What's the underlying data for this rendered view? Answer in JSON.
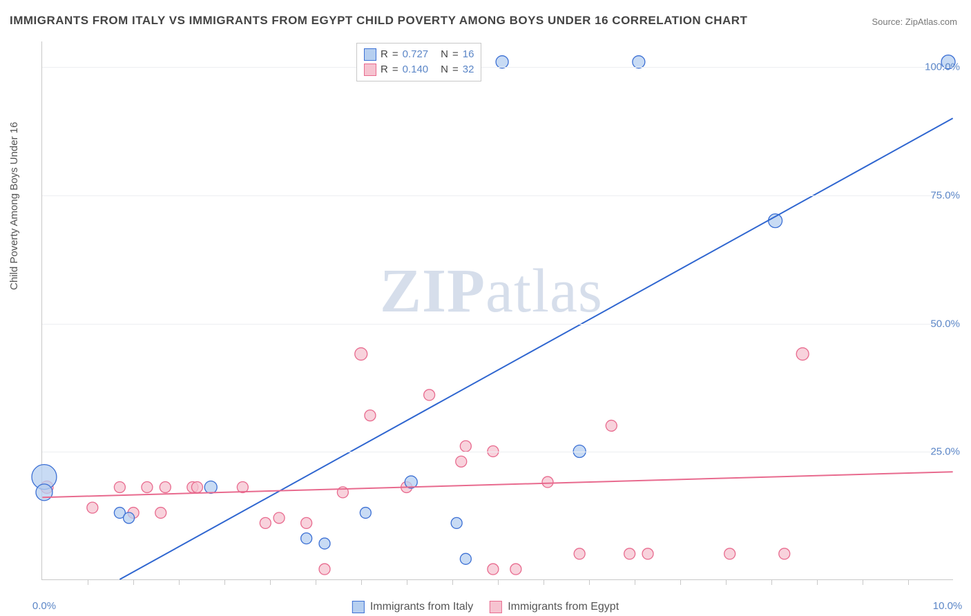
{
  "title": "IMMIGRANTS FROM ITALY VS IMMIGRANTS FROM EGYPT CHILD POVERTY AMONG BOYS UNDER 16 CORRELATION CHART",
  "source_prefix": "Source: ",
  "source": "ZipAtlas.com",
  "y_axis_label": "Child Poverty Among Boys Under 16",
  "watermark_a": "ZIP",
  "watermark_b": "atlas",
  "chart": {
    "type": "scatter",
    "xlim": [
      0,
      10
    ],
    "ylim": [
      0,
      105
    ],
    "y_ticks": [
      {
        "v": 25,
        "label": "25.0%"
      },
      {
        "v": 50,
        "label": "50.0%"
      },
      {
        "v": 75,
        "label": "75.0%"
      },
      {
        "v": 100,
        "label": "100.0%"
      }
    ],
    "x_ticks_major": [
      {
        "v": 0,
        "label": "0.0%"
      },
      {
        "v": 10,
        "label": "10.0%"
      }
    ],
    "x_minor_ticks": [
      0.5,
      1,
      1.5,
      2,
      2.5,
      3,
      3.5,
      4,
      4.5,
      5,
      5.5,
      6,
      6.5,
      7,
      7.5,
      8,
      8.5,
      9,
      9.5
    ],
    "background": "#ffffff",
    "grid_color": "#eceef1",
    "axis_color": "#c8c8c8"
  },
  "series": [
    {
      "name": "Immigrants from Italy",
      "fill": "#b6cff0",
      "stroke": "#3b6fd4",
      "line_color": "#2f66d0",
      "line_width": 2,
      "r_value": "0.727",
      "n_value": "16",
      "trend": {
        "x1": 0.85,
        "y1": 0,
        "x2": 10,
        "y2": 90
      },
      "points": [
        {
          "x": 0.02,
          "y": 20,
          "r": 18
        },
        {
          "x": 0.02,
          "y": 17,
          "r": 12
        },
        {
          "x": 0.85,
          "y": 13,
          "r": 8
        },
        {
          "x": 0.95,
          "y": 12,
          "r": 8
        },
        {
          "x": 1.85,
          "y": 18,
          "r": 9
        },
        {
          "x": 2.9,
          "y": 8,
          "r": 8
        },
        {
          "x": 3.1,
          "y": 7,
          "r": 8
        },
        {
          "x": 3.55,
          "y": 13,
          "r": 8
        },
        {
          "x": 4.05,
          "y": 19,
          "r": 9
        },
        {
          "x": 4.55,
          "y": 11,
          "r": 8
        },
        {
          "x": 4.65,
          "y": 4,
          "r": 8
        },
        {
          "x": 5.05,
          "y": 101,
          "r": 9
        },
        {
          "x": 5.9,
          "y": 25,
          "r": 9
        },
        {
          "x": 6.55,
          "y": 101,
          "r": 9
        },
        {
          "x": 8.05,
          "y": 70,
          "r": 10
        },
        {
          "x": 9.95,
          "y": 101,
          "r": 10
        }
      ]
    },
    {
      "name": "Immigrants from Egypt",
      "fill": "#f6c3d0",
      "stroke": "#e86a8e",
      "line_color": "#e86a8e",
      "line_width": 2,
      "r_value": "0.140",
      "n_value": "32",
      "trend": {
        "x1": 0,
        "y1": 16,
        "x2": 10,
        "y2": 21
      },
      "points": [
        {
          "x": 0.05,
          "y": 18,
          "r": 9
        },
        {
          "x": 0.55,
          "y": 14,
          "r": 8
        },
        {
          "x": 0.85,
          "y": 18,
          "r": 8
        },
        {
          "x": 1.0,
          "y": 13,
          "r": 8
        },
        {
          "x": 1.15,
          "y": 18,
          "r": 8
        },
        {
          "x": 1.3,
          "y": 13,
          "r": 8
        },
        {
          "x": 1.35,
          "y": 18,
          "r": 8
        },
        {
          "x": 1.65,
          "y": 18,
          "r": 8
        },
        {
          "x": 1.7,
          "y": 18,
          "r": 8
        },
        {
          "x": 2.2,
          "y": 18,
          "r": 8
        },
        {
          "x": 2.45,
          "y": 11,
          "r": 8
        },
        {
          "x": 2.6,
          "y": 12,
          "r": 8
        },
        {
          "x": 2.9,
          "y": 11,
          "r": 8
        },
        {
          "x": 3.1,
          "y": 2,
          "r": 8
        },
        {
          "x": 3.3,
          "y": 17,
          "r": 8
        },
        {
          "x": 3.5,
          "y": 44,
          "r": 9
        },
        {
          "x": 3.6,
          "y": 32,
          "r": 8
        },
        {
          "x": 4.0,
          "y": 18,
          "r": 8
        },
        {
          "x": 4.25,
          "y": 36,
          "r": 8
        },
        {
          "x": 4.6,
          "y": 23,
          "r": 8
        },
        {
          "x": 4.65,
          "y": 26,
          "r": 8
        },
        {
          "x": 4.95,
          "y": 25,
          "r": 8
        },
        {
          "x": 4.95,
          "y": 2,
          "r": 8
        },
        {
          "x": 5.2,
          "y": 2,
          "r": 8
        },
        {
          "x": 5.55,
          "y": 19,
          "r": 8
        },
        {
          "x": 5.9,
          "y": 5,
          "r": 8
        },
        {
          "x": 6.25,
          "y": 30,
          "r": 8
        },
        {
          "x": 6.45,
          "y": 5,
          "r": 8
        },
        {
          "x": 6.65,
          "y": 5,
          "r": 8
        },
        {
          "x": 7.55,
          "y": 5,
          "r": 8
        },
        {
          "x": 8.15,
          "y": 5,
          "r": 8
        },
        {
          "x": 8.35,
          "y": 44,
          "r": 9
        }
      ]
    }
  ],
  "legend_labels": {
    "R": "R",
    "eq": "=",
    "N": "N"
  }
}
